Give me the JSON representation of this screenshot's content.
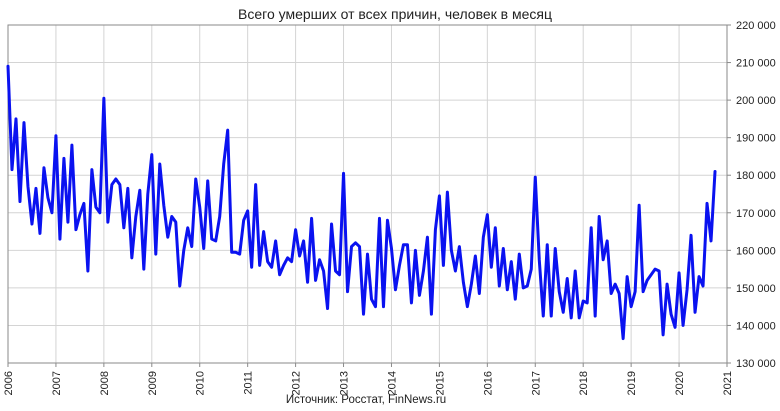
{
  "chart_data": {
    "type": "line",
    "title": "Всего умерших от всех причин, человек в месяц",
    "source": "Источник: Росстат, FinNews.ru",
    "xlabel": "",
    "ylabel": "",
    "ylim": [
      130000,
      220000
    ],
    "xlim": [
      "2006-01",
      "2021-01"
    ],
    "y_ticks": [
      "130 000",
      "140 000",
      "150 000",
      "160 000",
      "170 000",
      "180 000",
      "190 000",
      "200 000",
      "210 000",
      "220 000"
    ],
    "x_ticks": [
      "2006",
      "2007",
      "2008",
      "2009",
      "2010",
      "2011",
      "2012",
      "2013",
      "2014",
      "2015",
      "2016",
      "2017",
      "2018",
      "2019",
      "2020",
      "2021"
    ],
    "grid": true,
    "legend": "none",
    "line_color": "#0a12f0",
    "series": [
      {
        "start": "2006-01",
        "frequency": "monthly",
        "values": [
          209000,
          181500,
          195000,
          173000,
          194000,
          177000,
          167000,
          176500,
          164500,
          182000,
          174000,
          170000,
          190500,
          163000,
          184500,
          167500,
          188000,
          165500,
          169500,
          172500,
          154500,
          181500,
          171500,
          170000,
          200500,
          167500,
          177500,
          179000,
          177500,
          166000,
          176500,
          158000,
          169000,
          176000,
          155000,
          175000,
          185500,
          159000,
          183000,
          172000,
          163500,
          169000,
          167500,
          150500,
          160000,
          166000,
          161000,
          179000,
          171500,
          160500,
          178500,
          163000,
          162500,
          169000,
          183000,
          192000,
          159500,
          159500,
          159000,
          168000,
          170500,
          155500,
          177500,
          156000,
          165000,
          157000,
          155500,
          162500,
          153500,
          156000,
          158000,
          157000,
          165500,
          158500,
          162500,
          151500,
          168500,
          152000,
          157500,
          154500,
          144500,
          167000,
          154500,
          153500,
          180500,
          149000,
          161000,
          162000,
          161000,
          143000,
          159000,
          147000,
          145000,
          168500,
          145000,
          168000,
          160500,
          149500,
          156000,
          161500,
          161500,
          146000,
          160000,
          148000,
          154500,
          163500,
          143000,
          165500,
          174500,
          156000,
          175500,
          160000,
          154500,
          161000,
          151500,
          145000,
          151000,
          158500,
          148500,
          163500,
          169500,
          155500,
          166000,
          150500,
          160500,
          149500,
          157000,
          147000,
          159000,
          150000,
          150500,
          155000,
          179500,
          157500,
          142500,
          161500,
          142500,
          160500,
          149000,
          143500,
          152500,
          142000,
          154500,
          142000,
          146500,
          146000,
          166000,
          142500,
          169000,
          157500,
          162500,
          148500,
          151000,
          148500,
          136500,
          153000,
          145000,
          149000,
          172000,
          149000,
          152000,
          153500,
          155000,
          154500,
          137500,
          151000,
          143000,
          139500,
          154000,
          140000,
          149500,
          164000,
          143500,
          153000,
          150500,
          172500,
          162500,
          181000
        ]
      }
    ]
  }
}
